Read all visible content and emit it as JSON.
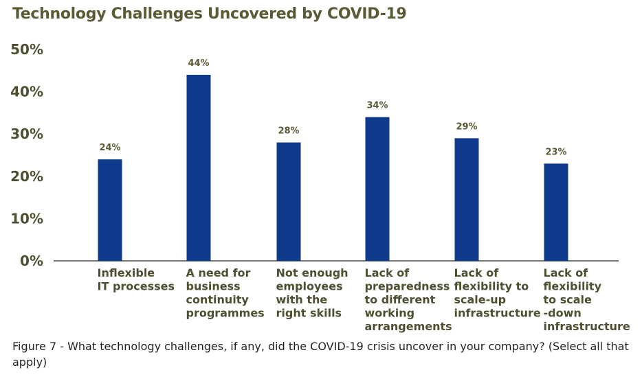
{
  "title": "Technology Challenges Uncovered by COVID-19",
  "caption": "Figure 7 - What technology challenges, if any, did the COVID-19 crisis uncover in your company? (Select all that apply)",
  "colors": {
    "bar": "#0f3a8c",
    "axis": "#777777",
    "text": "#4e4e30"
  },
  "chart_data": {
    "type": "bar",
    "title": "Technology Challenges Uncovered by COVID-19",
    "xlabel": "",
    "ylabel": "",
    "ylim": [
      0,
      50
    ],
    "yticks": [
      "0%",
      "10%",
      "20%",
      "30%",
      "40%",
      "50%"
    ],
    "grid": false,
    "categories": [
      [
        "Inflexible",
        "IT processes"
      ],
      [
        "A need for",
        "business",
        "continuity",
        "programmes"
      ],
      [
        "Not enough",
        "employees",
        "with the",
        "right skills"
      ],
      [
        "Lack of",
        "preparedness",
        "to different",
        "working",
        "arrangements"
      ],
      [
        "Lack of",
        "flexibility to",
        "scale-up",
        "infrastructure"
      ],
      [
        "Lack of",
        "flexibility",
        "to scale",
        "-down",
        "infrastructure"
      ]
    ],
    "values": [
      24,
      44,
      28,
      34,
      29,
      23
    ],
    "value_labels": [
      "24%",
      "44%",
      "28%",
      "34%",
      "29%",
      "23%"
    ]
  }
}
